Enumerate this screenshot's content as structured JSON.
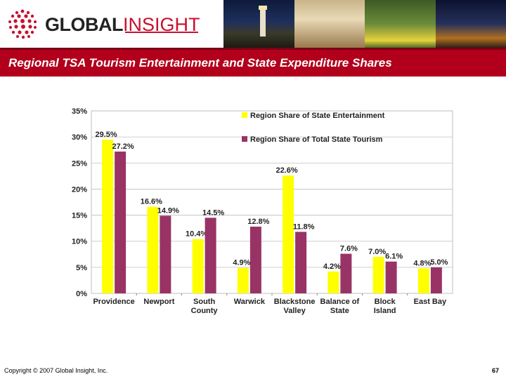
{
  "header": {
    "logo_global": "GLOBAL",
    "logo_insight": "INSIGHT",
    "colors": {
      "brand_red": "#c8102e",
      "title_bar": "#b2001c"
    }
  },
  "title": "Regional TSA Tourism Entertainment and State Expenditure Shares",
  "footer": {
    "copyright": "Copyright © 2007 Global Insight, Inc.",
    "page_number": "67"
  },
  "chart_data": {
    "type": "bar",
    "categories": [
      [
        "Providence"
      ],
      [
        "Newport"
      ],
      [
        "South",
        "County"
      ],
      [
        "Warwick"
      ],
      [
        "Blackstone",
        "Valley"
      ],
      [
        "Balance of",
        "State"
      ],
      [
        "Block",
        "Island"
      ],
      [
        "East Bay"
      ]
    ],
    "series": [
      {
        "name": "Region Share of State Entertainment",
        "color": "#ffff00",
        "values": [
          29.5,
          16.6,
          10.4,
          4.9,
          22.6,
          4.2,
          7.0,
          4.8
        ]
      },
      {
        "name": "Region Share of Total State Tourism",
        "color": "#993366",
        "values": [
          27.2,
          14.9,
          14.5,
          12.8,
          11.8,
          7.6,
          6.1,
          5.0
        ]
      }
    ],
    "value_labels": [
      [
        "29.5%",
        "16.6%",
        "10.4%",
        "4.9%",
        "22.6%",
        "4.2%",
        "7.0%",
        "4.8%"
      ],
      [
        "27.2%",
        "14.9%",
        "14.5%",
        "12.8%",
        "11.8%",
        "7.6%",
        "6.1%",
        "5.0%"
      ]
    ],
    "y_ticks": [
      "0%",
      "5%",
      "10%",
      "15%",
      "20%",
      "25%",
      "30%",
      "35%"
    ],
    "ylim": [
      0,
      35
    ],
    "grid": true,
    "legend_position": "top-right"
  }
}
